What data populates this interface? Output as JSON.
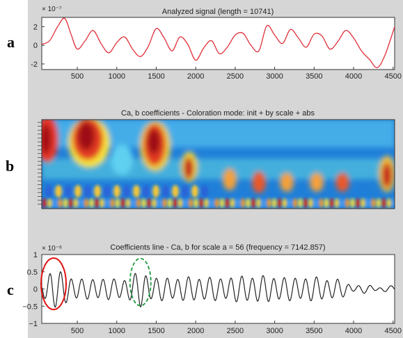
{
  "panel_labels": [
    "a",
    "b",
    "c"
  ],
  "colors": {
    "panel_bg": "#d6d6d6",
    "signal": "#e0303a",
    "coef_line": "#222222",
    "red_marker": "#e01010",
    "green_marker": "#1a9a3a"
  },
  "chart_data": [
    {
      "type": "line",
      "title": "Analyzed signal (length = 10741)",
      "y_exponent": "× 10⁻⁷",
      "xlim": [
        50,
        4520
      ],
      "ylim": [
        -2.6,
        3.0
      ],
      "x_ticks": [
        500,
        1000,
        1500,
        2000,
        2500,
        3000,
        3500,
        4000,
        4500
      ],
      "y_ticks": [
        -2,
        0,
        2
      ],
      "x": [
        50,
        150,
        250,
        340,
        420,
        500,
        600,
        700,
        800,
        900,
        1000,
        1100,
        1200,
        1300,
        1400,
        1500,
        1600,
        1700,
        1800,
        1900,
        2000,
        2100,
        2200,
        2300,
        2400,
        2500,
        2600,
        2700,
        2800,
        2900,
        3000,
        3100,
        3200,
        3300,
        3400,
        3500,
        3600,
        3700,
        3800,
        3900,
        4000,
        4100,
        4200,
        4300,
        4400,
        4520
      ],
      "y": [
        0.1,
        0.5,
        2.0,
        2.9,
        1.2,
        -0.4,
        0.5,
        1.6,
        0.2,
        -0.8,
        0.3,
        0.9,
        -0.4,
        -1.2,
        -0.1,
        1.8,
        0.8,
        -0.6,
        0.9,
        0.1,
        -1.6,
        -0.3,
        0.5,
        -0.9,
        -0.2,
        1.1,
        1.3,
        0.0,
        -0.6,
        2.1,
        1.1,
        0.2,
        1.7,
        0.8,
        -0.2,
        1.2,
        1.0,
        -0.4,
        0.4,
        1.6,
        0.8,
        -0.6,
        -1.5,
        -2.4,
        -1.0,
        2.0
      ]
    },
    {
      "type": "heatmap",
      "title": "Ca, b coefficients - Coloration mode: init + by scale + abs",
      "colormap": "jet"
    },
    {
      "type": "line",
      "title": "Coefficients line - Ca, b for scale a = 56 (frequency = 7142.857)",
      "y_exponent": "× 10⁻⁶",
      "xlim": [
        50,
        4520
      ],
      "ylim": [
        -1,
        1
      ],
      "x_ticks": [
        500,
        1000,
        1500,
        2000,
        2500,
        3000,
        3500,
        4000,
        4500
      ],
      "y_ticks": [
        -1,
        -0.5,
        0,
        0.5,
        1
      ],
      "y_tick_labels": [
        "−1",
        "−0.5",
        "0",
        "0.5",
        "1"
      ],
      "period": 135,
      "amplitude_profile": {
        "x": [
          50,
          180,
          300,
          450,
          600,
          800,
          1000,
          1150,
          1300,
          1450,
          1700,
          2000,
          2300,
          2600,
          2900,
          3200,
          3500,
          3800,
          4000,
          4200,
          4520
        ],
        "amp": [
          0.2,
          0.55,
          0.45,
          0.3,
          0.25,
          0.3,
          0.25,
          0.3,
          0.5,
          0.3,
          0.3,
          0.32,
          0.3,
          0.35,
          0.35,
          0.3,
          0.32,
          0.25,
          0.1,
          0.08,
          0.05
        ]
      },
      "annotations": [
        {
          "shape": "ellipse",
          "style": "solid",
          "color": "red",
          "center_x": 200,
          "center_y": 0.15
        },
        {
          "shape": "ellipse",
          "style": "dashed",
          "color": "green",
          "center_x": 1300,
          "center_y": 0.2
        }
      ]
    }
  ]
}
